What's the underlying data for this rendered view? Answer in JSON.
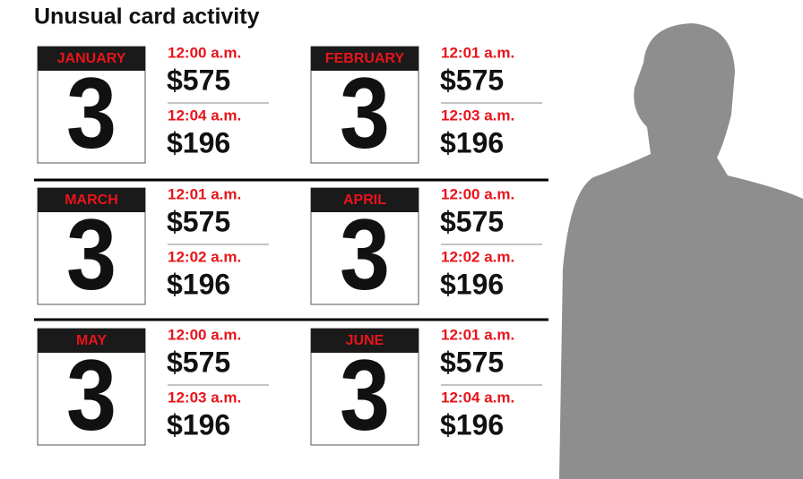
{
  "title": "Unusual card activity",
  "days": [
    {
      "month": "JANUARY",
      "day": 3,
      "transactions": [
        {
          "time": "12:00 a.m.",
          "amount": "$575"
        },
        {
          "time": "12:04 a.m.",
          "amount": "$196"
        }
      ]
    },
    {
      "month": "FEBRUARY",
      "day": 3,
      "transactions": [
        {
          "time": "12:01 a.m.",
          "amount": "$575"
        },
        {
          "time": "12:03 a.m.",
          "amount": "$196"
        }
      ]
    },
    {
      "month": "MARCH",
      "day": 3,
      "transactions": [
        {
          "time": "12:01 a.m.",
          "amount": "$575"
        },
        {
          "time": "12:02 a.m.",
          "amount": "$196"
        }
      ]
    },
    {
      "month": "APRIL",
      "day": 3,
      "transactions": [
        {
          "time": "12:00 a.m.",
          "amount": "$575"
        },
        {
          "time": "12:02 a.m.",
          "amount": "$196"
        }
      ]
    },
    {
      "month": "MAY",
      "day": 3,
      "transactions": [
        {
          "time": "12:00 a.m.",
          "amount": "$575"
        },
        {
          "time": "12:03 a.m.",
          "amount": "$196"
        }
      ]
    },
    {
      "month": "JUNE",
      "day": 3,
      "transactions": [
        {
          "time": "12:01 a.m.",
          "amount": "$575"
        },
        {
          "time": "12:04 a.m.",
          "amount": "$196"
        }
      ]
    }
  ]
}
